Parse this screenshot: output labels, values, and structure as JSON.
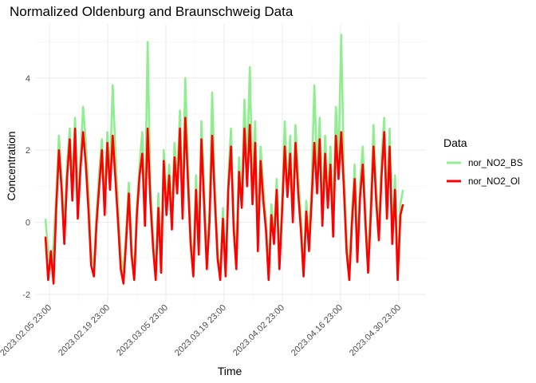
{
  "chart_data": {
    "type": "line",
    "title": "Normalized Oldenburg and Braunschweig Data",
    "xlabel": "Time",
    "ylabel": "Concentration",
    "x_range": [
      "2023.02.02 12:00",
      "2023.05.07 12:00"
    ],
    "ylim": [
      -2.2,
      5.5
    ],
    "x_ticks": [
      "2023.02.05 23:00",
      "2023.02.19 23:00",
      "2023.03.05 23:00",
      "2023.03.19 23:00",
      "2023.04.02 23:00",
      "2023.04.16 23:00",
      "2023.04.30 23:00"
    ],
    "y_ticks": [
      -2,
      0,
      2,
      4
    ],
    "grid": true,
    "legend": {
      "title": "Data",
      "position": "right"
    },
    "series": [
      {
        "name": "nor_NO2_BS",
        "color": "#90EE90",
        "x_start": "2023.02.05 00:00",
        "x_end": "2023.05.02 00:00",
        "values": [
          0.1,
          -0.8,
          -1.3,
          -0.6,
          0.8,
          2.4,
          1.2,
          -0.2,
          1.6,
          2.6,
          1.0,
          2.9,
          0.4,
          1.8,
          3.2,
          2.2,
          0.9,
          -0.9,
          -1.2,
          0.3,
          1.4,
          2.3,
          0.6,
          2.5,
          1.4,
          3.8,
          2.0,
          0.5,
          -0.9,
          -1.4,
          -0.2,
          1.1,
          -0.6,
          -1.5,
          0.5,
          1.6,
          2.5,
          0.2,
          5.0,
          1.0,
          -0.4,
          -1.5,
          0.8,
          -1.4,
          2.0,
          0.6,
          1.6,
          0.2,
          2.2,
          1.2,
          3.1,
          0.4,
          4.0,
          1.6,
          -0.3,
          -1.2,
          1.3,
          -0.6,
          2.8,
          0.9,
          -1.0,
          0.3,
          3.6,
          1.0,
          -0.7,
          -1.5,
          0.4,
          -1.3,
          1.2,
          2.6,
          0.1,
          -1.0,
          1.8,
          0.7,
          3.4,
          1.5,
          4.3,
          1.0,
          2.8,
          -0.5,
          2.1,
          1.0,
          0.1,
          -1.4,
          0.5,
          -0.3,
          1.2,
          -1.0,
          0.6,
          2.8,
          1.0,
          2.4,
          0.3,
          2.7,
          1.3,
          0.2,
          -1.3,
          0.6,
          -0.4,
          1.0,
          3.8,
          1.4,
          2.9,
          0.2,
          2.4,
          0.8,
          2.1,
          -0.1,
          3.2,
          1.7,
          5.2,
          1.4,
          -0.4,
          -1.4,
          0.3,
          1.6,
          -0.8,
          1.1,
          2.1,
          0.3,
          -1.1,
          0.6,
          2.7,
          1.0,
          -0.2,
          1.8,
          2.9,
          0.4,
          2.6,
          -0.3,
          1.3,
          -1.2,
          0.5,
          0.9
        ]
      },
      {
        "name": "nor_NO2_Ol",
        "color": "#FF0000",
        "x_start": "2023.02.05 00:00",
        "x_end": "2023.05.02 00:00",
        "values": [
          -0.4,
          -1.6,
          -0.8,
          -1.7,
          0.4,
          2.0,
          0.9,
          -0.6,
          1.2,
          2.3,
          0.6,
          2.6,
          0.1,
          1.5,
          2.5,
          1.6,
          0.3,
          -1.2,
          -1.5,
          0.0,
          1.0,
          2.0,
          0.2,
          2.2,
          0.9,
          2.4,
          1.2,
          0.0,
          -1.3,
          -1.7,
          -0.5,
          0.8,
          -0.9,
          -1.6,
          0.2,
          1.3,
          1.9,
          -0.1,
          2.6,
          0.6,
          -0.7,
          -1.6,
          0.4,
          -1.4,
          1.7,
          0.2,
          1.3,
          -0.2,
          1.8,
          0.8,
          2.6,
          0.1,
          2.9,
          1.1,
          -0.6,
          -1.5,
          0.9,
          -0.9,
          2.3,
          0.5,
          -1.3,
          0.0,
          2.4,
          0.6,
          -1.0,
          -1.6,
          0.1,
          -1.5,
          0.9,
          2.1,
          -0.2,
          -1.3,
          1.4,
          0.4,
          2.6,
          1.0,
          2.7,
          0.5,
          2.2,
          -0.8,
          1.7,
          0.6,
          -0.2,
          -1.6,
          0.2,
          -0.6,
          0.9,
          -1.3,
          0.3,
          2.1,
          0.7,
          1.9,
          0.0,
          2.2,
          0.8,
          -0.2,
          -1.5,
          0.3,
          -0.8,
          0.6,
          2.2,
          0.8,
          2.3,
          -0.1,
          1.9,
          0.4,
          1.6,
          -0.4,
          2.4,
          1.2,
          2.5,
          0.9,
          -0.8,
          -1.6,
          0.0,
          1.2,
          -1.1,
          0.7,
          1.6,
          0.0,
          -1.4,
          0.2,
          2.1,
          0.6,
          -0.5,
          1.3,
          2.5,
          0.1,
          2.1,
          -0.6,
          0.9,
          -1.6,
          0.2,
          0.5
        ]
      }
    ]
  }
}
